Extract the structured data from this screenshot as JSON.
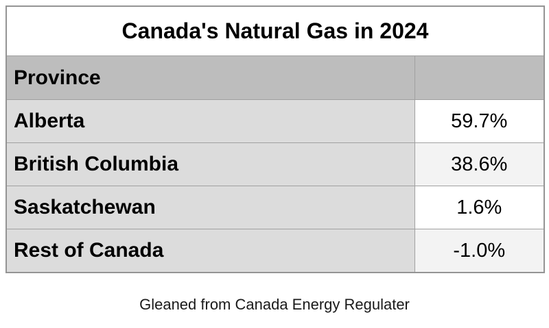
{
  "title": "Canada's Natural Gas in 2024",
  "table": {
    "header": {
      "province_label": "Province",
      "value_label": ""
    },
    "rows": [
      {
        "province": "Alberta",
        "value": "59.7%"
      },
      {
        "province": "British Columbia",
        "value": "38.6%"
      },
      {
        "province": "Saskatchewan",
        "value": "1.6%"
      },
      {
        "province": "Rest of Canada",
        "value": "-1.0%"
      }
    ]
  },
  "footer": {
    "caption": "Gleaned from Canada Energy Regulater"
  },
  "colors": {
    "header_bg": "#bdbdbd",
    "label_cell_bg": "#dcdcdc",
    "value_cell_white": "#ffffff",
    "value_cell_alt": "#f3f3f3",
    "border": "#a0a0a0",
    "text": "#000000"
  },
  "chart_data": {
    "type": "table",
    "title": "Canada's Natural Gas in 2024",
    "columns": [
      "Province",
      ""
    ],
    "categories": [
      "Alberta",
      "British Columbia",
      "Saskatchewan",
      "Rest of Canada"
    ],
    "values": [
      59.7,
      38.6,
      1.6,
      -1.0
    ],
    "unit": "%",
    "caption": "Gleaned from Canada Energy Regulater"
  }
}
